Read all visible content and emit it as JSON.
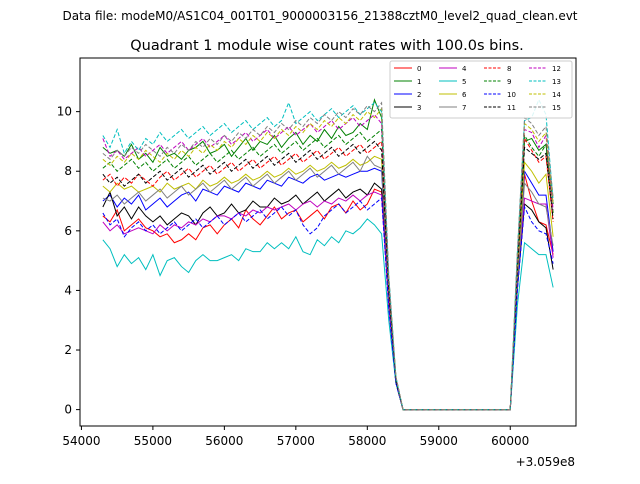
{
  "suptitle": "Data file: modeM0/AS1C04_001T01_9000003156_21388cztM0_level2_quad_clean.evt",
  "chart_data": {
    "type": "line",
    "title": "Quadrant 1 module wise count rates with 100.0s bins.",
    "xlabel": "",
    "ylabel": "",
    "offset_text": "+3.059e8",
    "xlim": [
      53980,
      60920
    ],
    "ylim": [
      -0.55,
      11.8
    ],
    "grid": false,
    "legend_placement": "upper-right",
    "x_ticks": [
      54000,
      55000,
      56000,
      57000,
      58000,
      59000,
      60000
    ],
    "x_tick_labels": [
      "54000",
      "55000",
      "56000",
      "57000",
      "58000",
      "59000",
      "60000"
    ],
    "y_ticks": [
      0,
      2,
      4,
      6,
      8,
      10
    ],
    "y_tick_labels": [
      "0",
      "2",
      "4",
      "6",
      "8",
      "10"
    ],
    "x": [
      54300,
      54400,
      54500,
      54600,
      54700,
      54800,
      54900,
      55000,
      55100,
      55200,
      55300,
      55400,
      55500,
      55600,
      55700,
      55800,
      55900,
      56000,
      56100,
      56200,
      56300,
      56400,
      56500,
      56600,
      56700,
      56800,
      56900,
      57000,
      57100,
      57200,
      57300,
      57400,
      57500,
      57600,
      57700,
      57800,
      57900,
      58000,
      58100,
      58200,
      58300,
      58400,
      58500,
      58600,
      58700,
      58800,
      58900,
      59000,
      59100,
      59200,
      59300,
      59400,
      59500,
      59600,
      59700,
      59800,
      59900,
      60000,
      60100,
      60200,
      60300,
      60400,
      60500,
      60600
    ],
    "series": [
      {
        "name": "0",
        "color": "#ff0000",
        "dash": "solid",
        "values": [
          6.5,
          6.3,
          6.7,
          6.0,
          6.2,
          6.4,
          6.1,
          6.0,
          5.8,
          5.9,
          5.6,
          5.7,
          5.9,
          5.7,
          6.1,
          6.2,
          5.9,
          6.2,
          6.4,
          6.1,
          6.7,
          6.4,
          6.2,
          6.5,
          6.8,
          6.4,
          6.6,
          6.7,
          6.3,
          6.5,
          6.7,
          6.4,
          6.8,
          6.9,
          6.6,
          7.0,
          6.7,
          6.9,
          7.4,
          7.3,
          3.5,
          0.9,
          0,
          0,
          0,
          0,
          0,
          0,
          0,
          0,
          0,
          0,
          0,
          0,
          0,
          0,
          0,
          0,
          4.2,
          7.9,
          7.0,
          6.3,
          6.2,
          5.2
        ]
      },
      {
        "name": "1",
        "color": "#008000",
        "dash": "solid",
        "values": [
          8.8,
          8.6,
          8.7,
          8.5,
          8.9,
          8.4,
          8.6,
          8.3,
          8.8,
          8.5,
          8.6,
          8.4,
          8.7,
          8.8,
          9.0,
          8.6,
          8.7,
          8.9,
          8.5,
          8.8,
          9.1,
          8.7,
          9.0,
          8.9,
          9.2,
          8.8,
          9.1,
          9.3,
          8.9,
          9.2,
          9.0,
          9.4,
          9.1,
          9.5,
          9.2,
          9.3,
          9.6,
          9.4,
          10.4,
          9.8,
          3.9,
          1.0,
          0,
          0,
          0,
          0,
          0,
          0,
          0,
          0,
          0,
          0,
          0,
          0,
          0,
          0,
          0,
          0,
          4.8,
          9.0,
          9.1,
          8.7,
          8.9,
          6.9
        ]
      },
      {
        "name": "2",
        "color": "#0000ff",
        "dash": "solid",
        "values": [
          7.0,
          7.2,
          6.8,
          7.1,
          6.9,
          7.2,
          6.7,
          6.9,
          7.1,
          6.8,
          7.0,
          7.2,
          7.3,
          7.0,
          7.4,
          7.3,
          7.2,
          7.5,
          7.4,
          7.3,
          7.6,
          7.5,
          7.4,
          7.7,
          7.6,
          7.5,
          7.8,
          7.7,
          7.6,
          7.8,
          7.9,
          7.7,
          7.8,
          7.9,
          7.8,
          7.9,
          8.0,
          8.0,
          8.1,
          8.0,
          3.8,
          0.9,
          0,
          0,
          0,
          0,
          0,
          0,
          0,
          0,
          0,
          0,
          0,
          0,
          0,
          0,
          0,
          0,
          4.5,
          8.0,
          7.6,
          7.2,
          7.2,
          5.3
        ]
      },
      {
        "name": "3",
        "color": "#000000",
        "dash": "solid",
        "values": [
          6.8,
          7.3,
          6.5,
          6.8,
          6.4,
          6.8,
          6.5,
          6.3,
          6.5,
          6.2,
          6.4,
          6.6,
          6.5,
          6.2,
          6.6,
          6.8,
          6.5,
          6.6,
          6.9,
          6.6,
          6.7,
          7.0,
          6.8,
          6.8,
          7.1,
          6.9,
          7.0,
          7.2,
          6.9,
          7.1,
          7.3,
          7.0,
          7.2,
          7.4,
          7.1,
          7.3,
          7.4,
          7.2,
          7.6,
          7.4,
          3.6,
          0.9,
          0,
          0,
          0,
          0,
          0,
          0,
          0,
          0,
          0,
          0,
          0,
          0,
          0,
          0,
          0,
          0,
          4.1,
          6.9,
          6.7,
          6.3,
          6.1,
          4.7
        ]
      },
      {
        "name": "4",
        "color": "#bf00bf",
        "dash": "solid",
        "values": [
          6.3,
          6.0,
          6.2,
          5.9,
          6.0,
          6.1,
          6.0,
          5.9,
          6.2,
          6.0,
          6.2,
          6.1,
          6.3,
          6.2,
          6.4,
          6.3,
          6.5,
          6.5,
          6.4,
          6.6,
          6.5,
          6.7,
          6.6,
          6.8,
          6.7,
          6.8,
          6.9,
          6.7,
          6.9,
          7.0,
          6.8,
          7.0,
          6.9,
          7.1,
          7.0,
          7.2,
          7.0,
          7.2,
          7.3,
          7.2,
          3.5,
          0.9,
          0,
          0,
          0,
          0,
          0,
          0,
          0,
          0,
          0,
          0,
          0,
          0,
          0,
          0,
          0,
          0,
          4.4,
          7.1,
          7.0,
          6.9,
          6.9,
          5.1
        ]
      },
      {
        "name": "5",
        "color": "#00bfbf",
        "dash": "solid",
        "values": [
          5.7,
          5.4,
          4.8,
          5.2,
          4.9,
          5.1,
          4.7,
          5.2,
          4.5,
          5.0,
          5.1,
          4.8,
          4.6,
          5.0,
          5.2,
          5.0,
          5.0,
          5.1,
          5.2,
          5.0,
          5.4,
          5.3,
          5.3,
          5.6,
          5.4,
          5.6,
          5.4,
          5.8,
          5.3,
          5.2,
          5.7,
          5.5,
          5.8,
          5.6,
          6.0,
          5.9,
          6.1,
          6.4,
          6.2,
          5.9,
          3.0,
          0.9,
          0,
          0,
          0,
          0,
          0,
          0,
          0,
          0,
          0,
          0,
          0,
          0,
          0,
          0,
          0,
          0,
          3.5,
          5.6,
          5.4,
          5.2,
          5.2,
          4.1
        ]
      },
      {
        "name": "6",
        "color": "#bfbf00",
        "dash": "solid",
        "values": [
          7.5,
          7.3,
          7.6,
          7.4,
          7.5,
          7.3,
          7.4,
          7.5,
          7.3,
          7.6,
          7.4,
          7.5,
          7.6,
          7.4,
          7.7,
          7.5,
          7.6,
          7.8,
          7.6,
          7.7,
          7.9,
          7.7,
          7.8,
          8.0,
          7.8,
          7.9,
          8.1,
          7.9,
          8.0,
          8.2,
          8.0,
          8.1,
          8.3,
          8.1,
          8.2,
          8.4,
          8.2,
          8.3,
          8.5,
          8.4,
          4.0,
          1.0,
          0,
          0,
          0,
          0,
          0,
          0,
          0,
          0,
          0,
          0,
          0,
          0,
          0,
          0,
          0,
          0,
          4.6,
          8.3,
          8.0,
          7.6,
          7.9,
          5.8
        ]
      },
      {
        "name": "7",
        "color": "#808080",
        "dash": "solid",
        "values": [
          7.1,
          7.0,
          7.2,
          6.9,
          7.1,
          7.3,
          7.0,
          7.2,
          7.4,
          7.1,
          7.3,
          7.5,
          7.2,
          7.4,
          7.6,
          7.3,
          7.5,
          7.7,
          7.4,
          7.6,
          7.8,
          7.5,
          7.7,
          7.9,
          7.6,
          7.8,
          8.0,
          7.7,
          7.9,
          8.1,
          7.8,
          8.0,
          8.2,
          7.9,
          8.1,
          8.3,
          8.0,
          8.5,
          8.2,
          8.1,
          3.9,
          1.0,
          0,
          0,
          0,
          0,
          0,
          0,
          0,
          0,
          0,
          0,
          0,
          0,
          0,
          0,
          0,
          0,
          4.3,
          7.6,
          7.3,
          6.9,
          6.8,
          5.5
        ]
      },
      {
        "name": "8",
        "color": "#ff0000",
        "dash": "dashed",
        "values": [
          7.7,
          7.9,
          7.5,
          7.8,
          7.6,
          7.9,
          7.7,
          7.5,
          7.8,
          8.0,
          7.7,
          7.9,
          8.1,
          7.8,
          8.0,
          8.2,
          7.9,
          8.1,
          8.3,
          8.0,
          8.2,
          8.4,
          8.1,
          8.3,
          8.5,
          8.2,
          8.4,
          8.6,
          8.3,
          8.5,
          8.7,
          8.4,
          8.6,
          8.8,
          8.5,
          8.7,
          8.9,
          8.6,
          8.8,
          9.0,
          4.1,
          1.0,
          0,
          0,
          0,
          0,
          0,
          0,
          0,
          0,
          0,
          0,
          0,
          0,
          0,
          0,
          0,
          0,
          4.9,
          9.1,
          8.7,
          8.3,
          8.5,
          6.3
        ]
      },
      {
        "name": "9",
        "color": "#008000",
        "dash": "dashed",
        "values": [
          8.1,
          8.3,
          8.0,
          8.2,
          8.4,
          8.1,
          8.3,
          8.0,
          8.2,
          8.4,
          8.1,
          8.3,
          8.5,
          8.2,
          8.4,
          8.6,
          8.3,
          8.5,
          8.7,
          8.4,
          8.6,
          8.8,
          8.5,
          8.7,
          8.9,
          8.6,
          8.8,
          9.0,
          8.7,
          8.9,
          9.1,
          8.8,
          9.0,
          9.2,
          8.9,
          9.1,
          9.3,
          9.0,
          9.2,
          9.4,
          4.2,
          1.0,
          0,
          0,
          0,
          0,
          0,
          0,
          0,
          0,
          0,
          0,
          0,
          0,
          0,
          0,
          0,
          0,
          5.0,
          9.2,
          8.8,
          8.5,
          8.9,
          6.6
        ]
      },
      {
        "name": "10",
        "color": "#0000ff",
        "dash": "dashed",
        "values": [
          6.6,
          6.2,
          6.4,
          5.8,
          6.1,
          6.3,
          6.0,
          6.2,
          5.9,
          6.1,
          6.3,
          6.0,
          6.2,
          6.4,
          6.1,
          6.3,
          6.5,
          6.2,
          6.4,
          6.6,
          6.3,
          6.5,
          6.7,
          6.4,
          6.6,
          6.8,
          6.5,
          6.7,
          6.2,
          5.9,
          6.1,
          6.5,
          6.7,
          6.9,
          6.6,
          6.8,
          7.0,
          6.7,
          6.9,
          7.1,
          3.4,
          0.9,
          0,
          0,
          0,
          0,
          0,
          0,
          0,
          0,
          0,
          0,
          0,
          0,
          0,
          0,
          0,
          0,
          4.0,
          6.8,
          6.3,
          6.0,
          5.9,
          4.9
        ]
      },
      {
        "name": "11",
        "color": "#000000",
        "dash": "dashed",
        "values": [
          7.9,
          7.6,
          7.8,
          7.5,
          7.7,
          7.9,
          7.6,
          7.8,
          8.0,
          7.7,
          7.9,
          8.1,
          7.8,
          8.0,
          8.2,
          7.9,
          8.1,
          8.3,
          8.0,
          8.2,
          8.4,
          8.1,
          8.3,
          8.5,
          8.2,
          8.4,
          8.6,
          8.3,
          8.5,
          8.7,
          8.4,
          8.6,
          8.8,
          8.5,
          8.7,
          8.9,
          8.6,
          8.8,
          9.0,
          8.7,
          4.0,
          1.0,
          0,
          0,
          0,
          0,
          0,
          0,
          0,
          0,
          0,
          0,
          0,
          0,
          0,
          0,
          0,
          0,
          4.7,
          8.8,
          8.6,
          8.4,
          8.6,
          6.4
        ]
      },
      {
        "name": "12",
        "color": "#bf00bf",
        "dash": "dashed",
        "values": [
          9.1,
          8.5,
          8.7,
          8.4,
          8.6,
          8.8,
          8.5,
          8.7,
          8.9,
          8.6,
          8.8,
          9.0,
          8.7,
          8.9,
          9.1,
          8.8,
          9.0,
          9.2,
          8.9,
          9.1,
          9.3,
          9.0,
          9.2,
          9.4,
          9.1,
          9.3,
          9.5,
          9.2,
          9.4,
          9.6,
          9.3,
          9.5,
          9.7,
          9.4,
          9.6,
          9.8,
          9.5,
          9.7,
          9.9,
          9.6,
          4.3,
          1.1,
          0,
          0,
          0,
          0,
          0,
          0,
          0,
          0,
          0,
          0,
          0,
          0,
          0,
          0,
          0,
          0,
          5.1,
          9.4,
          9.3,
          8.8,
          9.2,
          6.7
        ]
      },
      {
        "name": "13",
        "color": "#00bfbf",
        "dash": "dashed",
        "values": [
          9.2,
          8.8,
          9.4,
          8.6,
          9.0,
          8.7,
          9.1,
          8.9,
          9.3,
          9.0,
          9.2,
          9.4,
          9.1,
          9.3,
          9.5,
          9.2,
          9.4,
          9.6,
          9.3,
          9.5,
          9.7,
          9.4,
          9.6,
          9.8,
          9.5,
          9.7,
          10.3,
          9.6,
          9.8,
          10.0,
          9.7,
          9.9,
          10.1,
          9.8,
          10.0,
          10.2,
          9.9,
          10.1,
          10.3,
          10.0,
          4.5,
          1.1,
          0,
          0,
          0,
          0,
          0,
          0,
          0,
          0,
          0,
          0,
          0,
          0,
          0,
          0,
          0,
          0,
          5.3,
          9.7,
          9.8,
          10.4,
          9.9,
          7.0
        ]
      },
      {
        "name": "14",
        "color": "#bfbf00",
        "dash": "dashed",
        "values": [
          8.4,
          8.2,
          8.5,
          8.3,
          8.6,
          8.4,
          8.7,
          8.5,
          8.3,
          8.6,
          8.4,
          8.7,
          8.5,
          8.8,
          8.6,
          8.9,
          8.7,
          9.0,
          8.8,
          9.1,
          8.9,
          9.2,
          9.0,
          9.3,
          9.1,
          9.4,
          9.2,
          9.5,
          9.3,
          9.6,
          9.4,
          9.7,
          9.5,
          9.8,
          9.6,
          9.9,
          9.7,
          10.0,
          9.8,
          10.1,
          4.4,
          1.1,
          0,
          0,
          0,
          0,
          0,
          0,
          0,
          0,
          0,
          0,
          0,
          0,
          0,
          0,
          0,
          0,
          5.2,
          9.6,
          9.4,
          9.0,
          9.3,
          6.9
        ]
      },
      {
        "name": "15",
        "color": "#808080",
        "dash": "dashed",
        "values": [
          8.6,
          8.4,
          8.7,
          8.5,
          8.8,
          8.6,
          8.9,
          8.7,
          8.5,
          8.8,
          8.6,
          8.9,
          8.7,
          9.0,
          8.8,
          9.1,
          8.9,
          9.2,
          9.0,
          9.3,
          9.1,
          9.4,
          9.2,
          9.5,
          9.3,
          9.6,
          9.4,
          9.7,
          9.5,
          9.8,
          9.6,
          9.9,
          9.7,
          10.0,
          9.8,
          10.1,
          9.9,
          10.2,
          10.0,
          10.3,
          4.5,
          1.1,
          0,
          0,
          0,
          0,
          0,
          0,
          0,
          0,
          0,
          0,
          0,
          0,
          0,
          0,
          0,
          0,
          5.3,
          9.8,
          9.6,
          9.2,
          9.5,
          7.1
        ]
      }
    ]
  }
}
